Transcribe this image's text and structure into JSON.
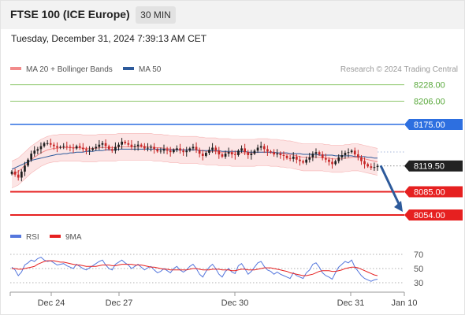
{
  "header": {
    "title": "FTSE 100 (ICE Europe)",
    "timeframe": "30 MIN"
  },
  "datetime": "Tuesday, December 31, 2024 7:39:13 AM CET",
  "watermark": "Research © 2024 Trading Central",
  "colors": {
    "up_candle": "#1f1f1f",
    "down_candle": "#c72828",
    "bollinger_line": "#f28b8b",
    "bollinger_fill": "#fbdcdc",
    "ma50": "#2d5a9b",
    "target_green": "#8cc66a",
    "resistance_blue": "#2d6fe0",
    "support_red": "#e62020",
    "rsi": "#5577dd",
    "rsi_9ma": "#e62020",
    "arrow": "#2d5a9b"
  },
  "chart_data": [
    {
      "type": "candlestick",
      "legend": [
        {
          "name": "MA 20 + Bollinger Bands",
          "color": "#f28b8b"
        },
        {
          "name": "MA 50",
          "color": "#2d5a9b"
        }
      ],
      "legend_position": "top-left",
      "x_ticks": [
        "Dec 24",
        "Dec 27",
        "Dec 30",
        "Dec 31",
        "Jan 10"
      ],
      "levels": [
        {
          "label": "8228.00",
          "value": 8228,
          "kind": "target",
          "color": "#8cc66a"
        },
        {
          "label": "8206.00",
          "value": 8206,
          "kind": "target",
          "color": "#8cc66a"
        },
        {
          "label": "8175.00",
          "value": 8175,
          "kind": "resistance",
          "color": "#2d6fe0"
        },
        {
          "label": "8119.50",
          "value": 8119.5,
          "kind": "last",
          "color": "#222222"
        },
        {
          "label": "8085.00",
          "value": 8085,
          "kind": "support",
          "color": "#e62020"
        },
        {
          "label": "8054.00",
          "value": 8054,
          "kind": "support",
          "color": "#e62020"
        }
      ],
      "forecast_arrow": {
        "from": 8120,
        "to": 8054,
        "direction": "down"
      },
      "close_series": [
        8112,
        8108,
        8104,
        8112,
        8120,
        8128,
        8136,
        8140,
        8142,
        8146,
        8150,
        8150,
        8148,
        8146,
        8144,
        8145,
        8146,
        8145,
        8144,
        8143,
        8146,
        8144,
        8142,
        8140,
        8141,
        8143,
        8145,
        8148,
        8150,
        8146,
        8142,
        8140,
        8145,
        8148,
        8152,
        8150,
        8148,
        8145,
        8146,
        8148,
        8146,
        8143,
        8144,
        8145,
        8142,
        8139,
        8140,
        8142,
        8140,
        8138,
        8141,
        8143,
        8140,
        8138,
        8140,
        8143,
        8145,
        8141,
        8136,
        8133,
        8137,
        8141,
        8144,
        8140,
        8135,
        8132,
        8136,
        8138,
        8135,
        8134,
        8140,
        8143,
        8138,
        8134,
        8136,
        8140,
        8144,
        8146,
        8142,
        8139,
        8138,
        8135,
        8136,
        8134,
        8133,
        8130,
        8129,
        8132,
        8128,
        8126,
        8124,
        8128,
        8131,
        8136,
        8138,
        8135,
        8130,
        8128,
        8125,
        8122,
        8126,
        8131,
        8134,
        8137,
        8138,
        8140,
        8135,
        8131,
        8126,
        8122,
        8119,
        8117,
        8118,
        8119.5
      ],
      "ma20": [
        8108,
        8110,
        8112,
        8116,
        8120,
        8124,
        8128,
        8131,
        8134,
        8137,
        8139,
        8141,
        8142,
        8143,
        8143,
        8144,
        8144,
        8144,
        8144,
        8144,
        8144,
        8144,
        8143,
        8143,
        8143,
        8143,
        8143,
        8144,
        8144,
        8144,
        8144,
        8144,
        8144,
        8145,
        8145,
        8145,
        8145,
        8145,
        8145,
        8145,
        8145,
        8145,
        8145,
        8145,
        8144,
        8144,
        8144,
        8143,
        8143,
        8142,
        8142,
        8142,
        8141,
        8141,
        8141,
        8141,
        8141,
        8141,
        8140,
        8140,
        8139,
        8139,
        8139,
        8139,
        8138,
        8138,
        8138,
        8138,
        8137,
        8137,
        8137,
        8137,
        8137,
        8137,
        8137,
        8137,
        8138,
        8138,
        8138,
        8138,
        8137,
        8137,
        8137,
        8136,
        8136,
        8135,
        8135,
        8134,
        8133,
        8132,
        8131,
        8131,
        8131,
        8131,
        8131,
        8131,
        8131,
        8130,
        8130,
        8129,
        8129,
        8129,
        8129,
        8130,
        8130,
        8131,
        8131,
        8131,
        8130,
        8129,
        8128,
        8127,
        8126,
        8125
      ],
      "ma50": [
        8115,
        8117,
        8119,
        8121,
        8123,
        8125,
        8127,
        8128,
        8129,
        8130,
        8131,
        8132,
        8133,
        8134,
        8135,
        8135,
        8136,
        8136,
        8137,
        8137,
        8138,
        8138,
        8138,
        8139,
        8139,
        8139,
        8140,
        8140,
        8140,
        8141,
        8141,
        8141,
        8141,
        8142,
        8142,
        8142,
        8142,
        8142,
        8142,
        8142,
        8142,
        8142,
        8142,
        8142,
        8142,
        8142,
        8142,
        8142,
        8141,
        8141,
        8141,
        8141,
        8141,
        8141,
        8141,
        8141,
        8141,
        8141,
        8140,
        8140,
        8140,
        8140,
        8140,
        8140,
        8140,
        8139,
        8139,
        8139,
        8139,
        8139,
        8139,
        8139,
        8139,
        8138,
        8138,
        8138,
        8138,
        8138,
        8138,
        8138,
        8138,
        8138,
        8137,
        8137,
        8137,
        8137,
        8136,
        8136,
        8136,
        8136,
        8135,
        8135,
        8135,
        8135,
        8135,
        8134,
        8134,
        8134,
        8134,
        8134,
        8133,
        8133,
        8133,
        8133,
        8133,
        8133,
        8132,
        8132,
        8132,
        8132,
        8131,
        8131,
        8130,
        8130
      ],
      "bollinger_halfwidth": 18
    },
    {
      "type": "line",
      "legend": [
        {
          "name": "RSI",
          "color": "#5577dd"
        },
        {
          "name": "9MA",
          "color": "#e62020"
        }
      ],
      "legend_position": "top-left",
      "y_ticks": [
        70,
        50,
        30
      ],
      "ylim": [
        20,
        80
      ],
      "rsi": [
        52,
        48,
        40,
        45,
        55,
        58,
        62,
        60,
        64,
        66,
        62,
        60,
        61,
        58,
        55,
        56,
        57,
        54,
        52,
        50,
        56,
        53,
        50,
        48,
        51,
        54,
        57,
        60,
        62,
        55,
        50,
        48,
        56,
        59,
        62,
        58,
        55,
        50,
        53,
        56,
        52,
        48,
        51,
        53,
        48,
        44,
        46,
        50,
        47,
        44,
        50,
        53,
        48,
        45,
        48,
        53,
        56,
        50,
        42,
        38,
        46,
        52,
        56,
        50,
        42,
        38,
        46,
        50,
        45,
        43,
        54,
        57,
        50,
        42,
        46,
        52,
        58,
        60,
        53,
        48,
        46,
        42,
        45,
        42,
        40,
        38,
        36,
        44,
        40,
        38,
        36,
        44,
        48,
        56,
        58,
        52,
        44,
        40,
        38,
        35,
        44,
        52,
        56,
        60,
        58,
        62,
        52,
        46,
        40,
        36,
        34,
        32,
        34,
        35
      ],
      "ma9": [
        50,
        50,
        49,
        49,
        50,
        51,
        52,
        53,
        56,
        58,
        60,
        61,
        61,
        61,
        60,
        59,
        59,
        58,
        57,
        56,
        55,
        55,
        54,
        53,
        53,
        53,
        53,
        54,
        55,
        55,
        55,
        54,
        54,
        55,
        56,
        56,
        56,
        56,
        55,
        55,
        55,
        54,
        53,
        52,
        52,
        51,
        50,
        49,
        49,
        48,
        48,
        48,
        48,
        48,
        48,
        49,
        50,
        50,
        49,
        48,
        48,
        48,
        49,
        49,
        49,
        48,
        48,
        48,
        47,
        47,
        48,
        49,
        49,
        48,
        48,
        48,
        49,
        50,
        51,
        51,
        51,
        50,
        49,
        48,
        47,
        46,
        44,
        43,
        42,
        41,
        40,
        40,
        41,
        42,
        44,
        46,
        47,
        47,
        47,
        46,
        46,
        47,
        48,
        50,
        51,
        52,
        52,
        51,
        49,
        47,
        45,
        43,
        41,
        40
      ]
    }
  ]
}
